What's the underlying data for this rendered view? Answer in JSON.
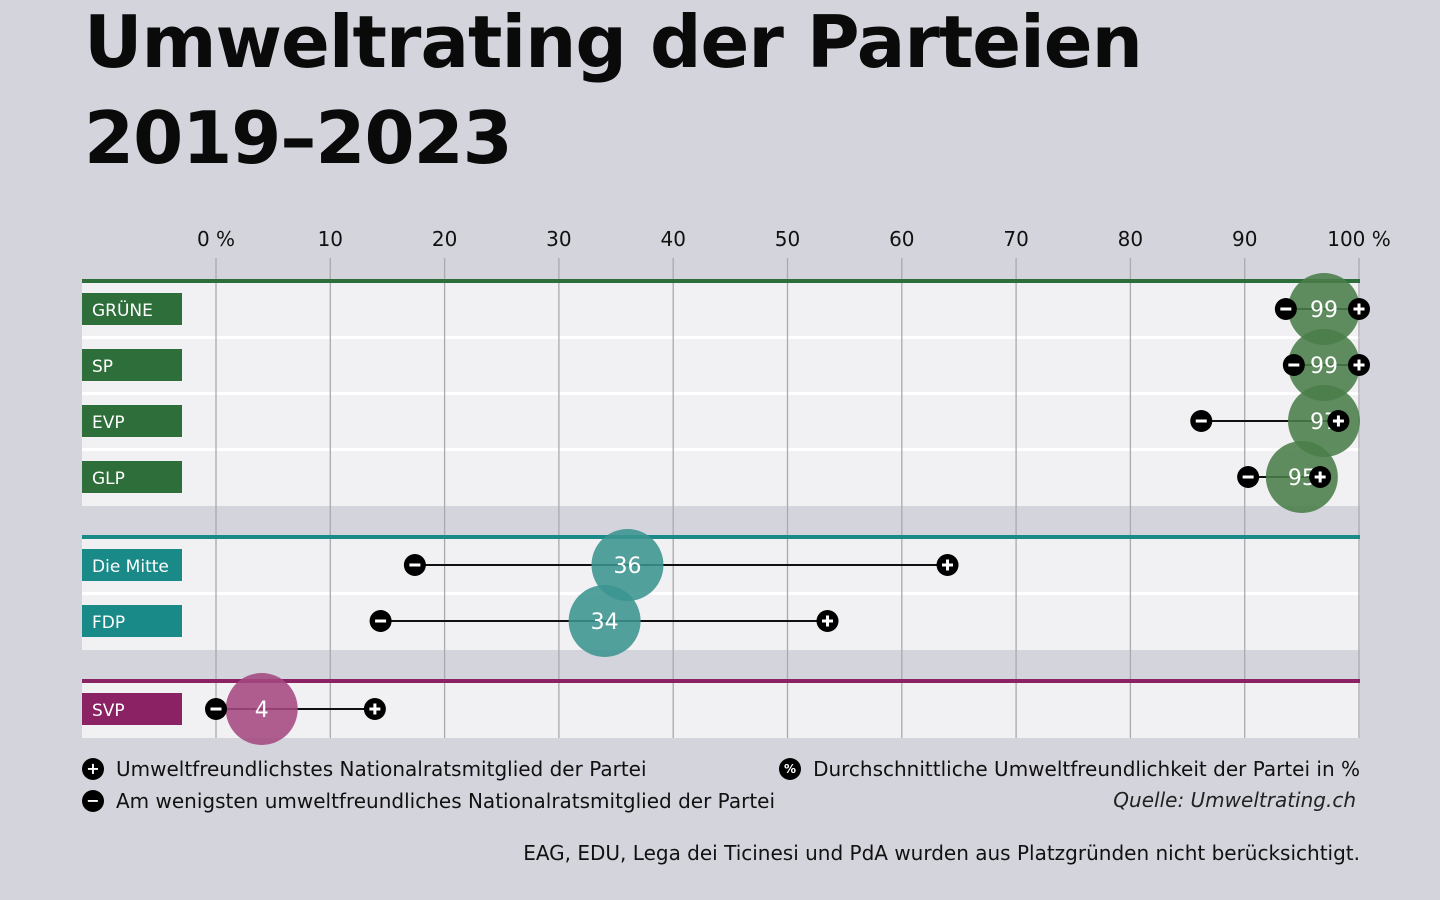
{
  "title_line1": "Umweltrating der Parteien",
  "title_line2": "2019–2023",
  "chart_data": {
    "type": "dot-range",
    "title": "Umweltrating der Parteien 2019–2023",
    "xlim": [
      0,
      100
    ],
    "x_ticks": [
      {
        "value": 0,
        "label": "0 %"
      },
      {
        "value": 10,
        "label": "10"
      },
      {
        "value": 20,
        "label": "20"
      },
      {
        "value": 30,
        "label": "30"
      },
      {
        "value": 40,
        "label": "40"
      },
      {
        "value": 50,
        "label": "50"
      },
      {
        "value": 60,
        "label": "60"
      },
      {
        "value": 70,
        "label": "70"
      },
      {
        "value": 80,
        "label": "80"
      },
      {
        "value": 90,
        "label": "90"
      },
      {
        "value": 100,
        "label": "100 %"
      }
    ],
    "groups": [
      {
        "color": "#2e6e3a",
        "bubble_color": "#4a7d49",
        "parties": [
          {
            "name": "GRÜNE",
            "average": 99,
            "min": 93.6,
            "max": 100
          },
          {
            "name": "SP",
            "average": 99,
            "min": 94.3,
            "max": 100
          },
          {
            "name": "EVP",
            "average": 97,
            "min": 86.2,
            "max": 98.2
          },
          {
            "name": "GLP",
            "average": 95,
            "min": 90.3,
            "max": 96.6
          }
        ]
      },
      {
        "color": "#198a88",
        "bubble_color": "#3a9490",
        "parties": [
          {
            "name": "Die Mitte",
            "average": 36,
            "min": 17.4,
            "max": 64
          },
          {
            "name": "FDP",
            "average": 34,
            "min": 14.4,
            "max": 53.5
          }
        ]
      },
      {
        "color": "#8b2263",
        "bubble_color": "#a4487f",
        "parties": [
          {
            "name": "SVP",
            "average": 4,
            "min": 0,
            "max": 13.9
          }
        ]
      }
    ]
  },
  "legend": {
    "max_label": "Umweltfreundlichstes Nationalratsmitglied der Partei",
    "min_label": "Am wenigsten umweltfreundliches Nationalratsmitglied der Partei",
    "avg_label": "Durchschnittliche Umweltfreundlichkeit der Partei in %",
    "max_icon": "+",
    "min_icon": "−",
    "avg_icon": "%"
  },
  "source": "Quelle: Umweltrating.ch",
  "note": "EAG, EDU, Lega dei Ticinesi und PdA wurden aus Platzgründen nicht berücksichtigt."
}
